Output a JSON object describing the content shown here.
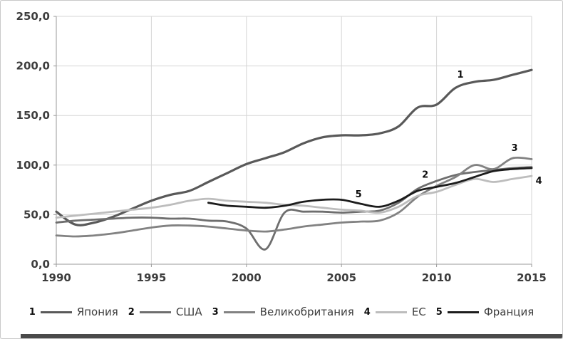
{
  "chart_data": {
    "type": "line",
    "title": "",
    "xlabel": "",
    "ylabel": "",
    "xlim": [
      1990,
      2015
    ],
    "ylim": [
      0,
      250
    ],
    "grid": true,
    "legend_position": "bottom",
    "x_ticks": [
      {
        "v": 1990,
        "label": "1990"
      },
      {
        "v": 1995,
        "label": "1995"
      },
      {
        "v": 2000,
        "label": "2000"
      },
      {
        "v": 2005,
        "label": "2005"
      },
      {
        "v": 2010,
        "label": "2010"
      },
      {
        "v": 2015,
        "label": "2015"
      }
    ],
    "y_ticks": [
      {
        "v": 0,
        "label": "0,0"
      },
      {
        "v": 50,
        "label": "50,0"
      },
      {
        "v": 100,
        "label": "100,0"
      },
      {
        "v": 150,
        "label": "150,0"
      },
      {
        "v": 200,
        "label": "200,0"
      },
      {
        "v": 250,
        "label": "250,0"
      }
    ],
    "series": [
      {
        "number": "1",
        "name": "Япония",
        "color": "#595959",
        "width": 3.2,
        "start_year": 1990,
        "values": [
          53,
          40,
          42,
          48,
          56,
          64,
          70,
          74,
          83,
          92,
          101,
          107,
          113,
          122,
          128,
          130,
          130,
          132,
          139,
          158,
          161,
          178,
          184,
          186,
          191,
          196
        ]
      },
      {
        "number": "2",
        "name": "США",
        "color": "#6e6e6e",
        "width": 2.8,
        "start_year": 1990,
        "values": [
          42,
          44,
          45,
          46,
          47,
          47,
          46,
          46,
          44,
          43,
          36,
          15,
          52,
          53,
          53,
          52,
          53,
          54,
          62,
          76,
          84,
          90,
          93,
          95,
          97,
          98
        ]
      },
      {
        "number": "3",
        "name": "Великобритания",
        "color": "#828282",
        "width": 2.8,
        "start_year": 1990,
        "values": [
          29,
          28,
          29,
          31,
          34,
          37,
          39,
          39,
          38,
          36,
          34,
          33,
          35,
          38,
          40,
          42,
          43,
          44,
          52,
          68,
          79,
          88,
          100,
          96,
          107,
          106
        ]
      },
      {
        "number": "4",
        "name": "ЕС",
        "color": "#bdbdbd",
        "width": 2.8,
        "start_year": 1990,
        "values": [
          47,
          49,
          51,
          53,
          55,
          57,
          60,
          64,
          66,
          64,
          63,
          62,
          60,
          59,
          57,
          55,
          54,
          52,
          58,
          69,
          73,
          80,
          86,
          83,
          86,
          89
        ]
      },
      {
        "number": "5",
        "name": "Франция",
        "color": "#1c1c1c",
        "width": 2.8,
        "start_year": 1998,
        "values": [
          62,
          59,
          58,
          57,
          59,
          63,
          65,
          65,
          61,
          58,
          64,
          74,
          78,
          82,
          88,
          94,
          96,
          97
        ]
      }
    ],
    "annotations": [
      {
        "label": "1",
        "year": 2011.25,
        "value": 191
      },
      {
        "label": "2",
        "year": 2009.4,
        "value": 90
      },
      {
        "label": "3",
        "year": 2014.1,
        "value": 117
      },
      {
        "label": "4",
        "year": 2015.38,
        "value": 84
      },
      {
        "label": "5",
        "year": 2005.9,
        "value": 70.5
      }
    ]
  },
  "legend": {
    "items": [
      {
        "number": "1",
        "label": "Япония",
        "color": "#595959"
      },
      {
        "number": "2",
        "label": "США",
        "color": "#6e6e6e"
      },
      {
        "number": "3",
        "label": "Великобритания",
        "color": "#828282"
      },
      {
        "number": "4",
        "label": "ЕС",
        "color": "#bdbdbd"
      },
      {
        "number": "5",
        "label": "Франция",
        "color": "#1c1c1c"
      }
    ]
  },
  "colors": {
    "grid": "#d6d6d6",
    "axis": "#9a9a9a",
    "tick_text": "#3d3d3d",
    "figure_border": "#c9c9c9",
    "bottom_strip": "#4a4a4a"
  }
}
